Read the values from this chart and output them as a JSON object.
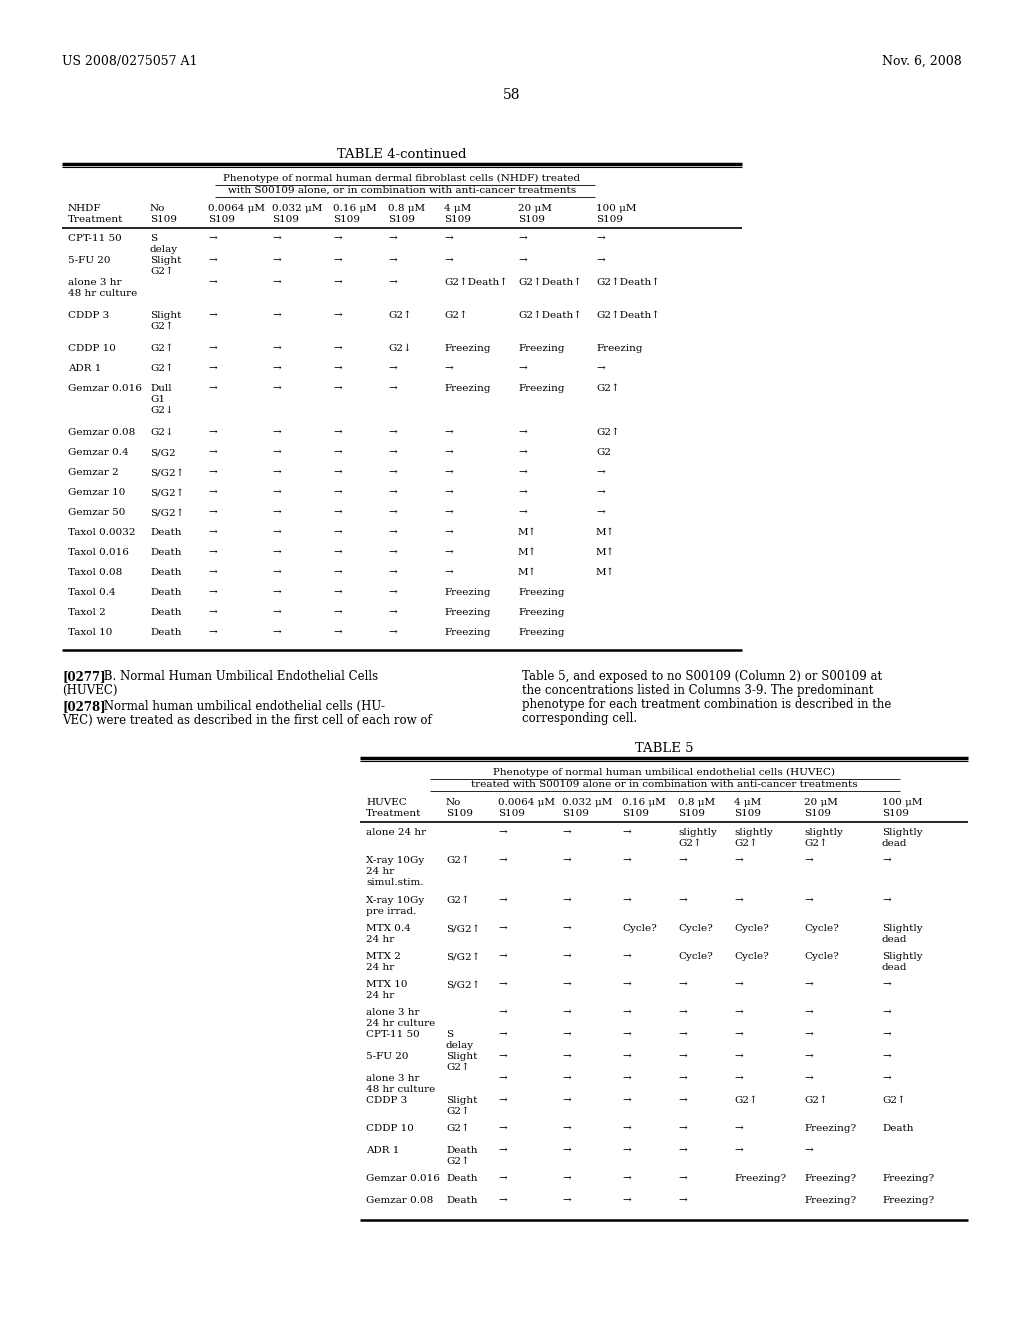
{
  "header_left": "US 2008/0275057 A1",
  "header_right": "Nov. 6, 2008",
  "page_number": "58",
  "table4_title": "TABLE 4-continued",
  "table4_subtitle1": "Phenotype of normal human dermal fibroblast cells (NHDF) treated",
  "table4_subtitle2": "with S00109 alone, or in combination with anti-cancer treatments",
  "table4_col_headers": [
    "NHDF\nTreatment",
    "No\nS109",
    "0.0064 μM\nS109",
    "0.032 μM\nS109",
    "0.16 μM\nS109",
    "0.8 μM\nS109",
    "4 μM\nS109",
    "20 μM\nS109",
    "100 μM\nS109"
  ],
  "table4_rows": [
    [
      "CPT-11 50",
      "S\ndelay",
      "→",
      "→",
      "→",
      "→",
      "→",
      "→",
      "→"
    ],
    [
      "5-FU 20",
      "Slight\nG2↑",
      "→",
      "→",
      "→",
      "→",
      "→",
      "→",
      "→"
    ],
    [
      "alone 3 hr\n48 hr culture",
      "",
      "→",
      "→",
      "→",
      "→",
      "G2↑Death↑",
      "G2↑Death↑",
      "G2↑Death↑"
    ],
    [
      "CDDP 3",
      "Slight\nG2↑",
      "→",
      "→",
      "→",
      "G2↑",
      "G2↑",
      "G2↑Death↑",
      "G2↑Death↑"
    ],
    [
      "CDDP 10",
      "G2↑",
      "→",
      "→",
      "→",
      "G2↓",
      "Freezing",
      "Freezing",
      "Freezing"
    ],
    [
      "ADR 1",
      "G2↑",
      "→",
      "→",
      "→",
      "→",
      "→",
      "→",
      "→"
    ],
    [
      "Gemzar 0.016",
      "Dull\nG1\nG2↓",
      "→",
      "→",
      "→",
      "→",
      "Freezing",
      "Freezing",
      "G2↑"
    ],
    [
      "Gemzar 0.08",
      "G2↓",
      "→",
      "→",
      "→",
      "→",
      "→",
      "→",
      "G2↑"
    ],
    [
      "Gemzar 0.4",
      "S/G2",
      "→",
      "→",
      "→",
      "→",
      "→",
      "→",
      "G2"
    ],
    [
      "Gemzar 2",
      "S/G2↑",
      "→",
      "→",
      "→",
      "→",
      "→",
      "→",
      "→"
    ],
    [
      "Gemzar 10",
      "S/G2↑",
      "→",
      "→",
      "→",
      "→",
      "→",
      "→",
      "→"
    ],
    [
      "Gemzar 50",
      "S/G2↑",
      "→",
      "→",
      "→",
      "→",
      "→",
      "→",
      "→"
    ],
    [
      "Taxol 0.0032",
      "Death",
      "→",
      "→",
      "→",
      "→",
      "→",
      "M↑",
      "M↑"
    ],
    [
      "Taxol 0.016",
      "Death",
      "→",
      "→",
      "→",
      "→",
      "→",
      "M↑",
      "M↑"
    ],
    [
      "Taxol 0.08",
      "Death",
      "→",
      "→",
      "→",
      "→",
      "→",
      "M↑",
      "M↑"
    ],
    [
      "Taxol 0.4",
      "Death",
      "→",
      "→",
      "→",
      "→",
      "Freezing",
      "Freezing",
      ""
    ],
    [
      "Taxol 2",
      "Death",
      "→",
      "→",
      "→",
      "→",
      "Freezing",
      "Freezing",
      ""
    ],
    [
      "Taxol 10",
      "Death",
      "→",
      "→",
      "→",
      "→",
      "Freezing",
      "Freezing",
      ""
    ]
  ],
  "table4_row_heights": [
    22,
    22,
    33,
    33,
    20,
    20,
    44,
    20,
    20,
    20,
    20,
    20,
    20,
    20,
    20,
    20,
    20,
    20
  ],
  "table5_title": "TABLE 5",
  "table5_subtitle1": "Phenotype of normal human umbilical endothelial cells (HUVEC)",
  "table5_subtitle2": "treated with S00109 alone or in combination with anti-cancer treatments",
  "table5_col_headers": [
    "HUVEC\nTreatment",
    "No\nS109",
    "0.0064 μM\nS109",
    "0.032 μM\nS109",
    "0.16 μM\nS109",
    "0.8 μM\nS109",
    "4 μM\nS109",
    "20 μM\nS109",
    "100 μM\nS109"
  ],
  "table5_rows": [
    [
      "alone 24 hr",
      "",
      "→",
      "→",
      "→",
      "slightly\nG2↑",
      "slightly\nG2↑",
      "slightly\nG2↑",
      "Slightly\ndead"
    ],
    [
      "X-ray 10Gy\n24 hr\nsimul.stim.",
      "G2↑",
      "→",
      "→",
      "→",
      "→",
      "→",
      "→",
      "→"
    ],
    [
      "X-ray 10Gy\npre irrad.",
      "G2↑",
      "→",
      "→",
      "→",
      "→",
      "→",
      "→",
      "→"
    ],
    [
      "MTX 0.4\n24 hr",
      "S/G2↑",
      "→",
      "→",
      "Cycle?",
      "Cycle?",
      "Cycle?",
      "Cycle?",
      "Slightly\ndead"
    ],
    [
      "MTX 2\n24 hr",
      "S/G2↑",
      "→",
      "→",
      "→",
      "Cycle?",
      "Cycle?",
      "Cycle?",
      "Slightly\ndead"
    ],
    [
      "MTX 10\n24 hr",
      "S/G2↑",
      "→",
      "→",
      "→",
      "→",
      "→",
      "→",
      "→"
    ],
    [
      "alone 3 hr\n24 hr culture",
      "",
      "→",
      "→",
      "→",
      "→",
      "→",
      "→",
      "→"
    ],
    [
      "CPT-11 50",
      "S\ndelay",
      "→",
      "→",
      "→",
      "→",
      "→",
      "→",
      "→"
    ],
    [
      "5-FU 20",
      "Slight\nG2↑",
      "→",
      "→",
      "→",
      "→",
      "→",
      "→",
      "→"
    ],
    [
      "alone 3 hr\n48 hr culture",
      "",
      "→",
      "→",
      "→",
      "→",
      "→",
      "→",
      "→"
    ],
    [
      "CDDP 3",
      "Slight\nG2↑",
      "→",
      "→",
      "→",
      "→",
      "G2↑",
      "G2↑",
      "G2↑"
    ],
    [
      "CDDP 10",
      "G2↑",
      "→",
      "→",
      "→",
      "→",
      "→",
      "Freezing?",
      "Death"
    ],
    [
      "ADR 1",
      "Death\nG2↑",
      "→",
      "→",
      "→",
      "→",
      "→",
      "→",
      ""
    ],
    [
      "Gemzar 0.016",
      "Death",
      "→",
      "→",
      "→",
      "→",
      "Freezing?",
      "Freezing?",
      "Freezing?"
    ],
    [
      "Gemzar 0.08",
      "Death",
      "→",
      "→",
      "→",
      "→",
      "",
      "Freezing?",
      "Freezing?"
    ]
  ],
  "table5_row_heights": [
    28,
    40,
    28,
    28,
    28,
    28,
    22,
    22,
    22,
    22,
    28,
    22,
    28,
    22,
    22
  ]
}
